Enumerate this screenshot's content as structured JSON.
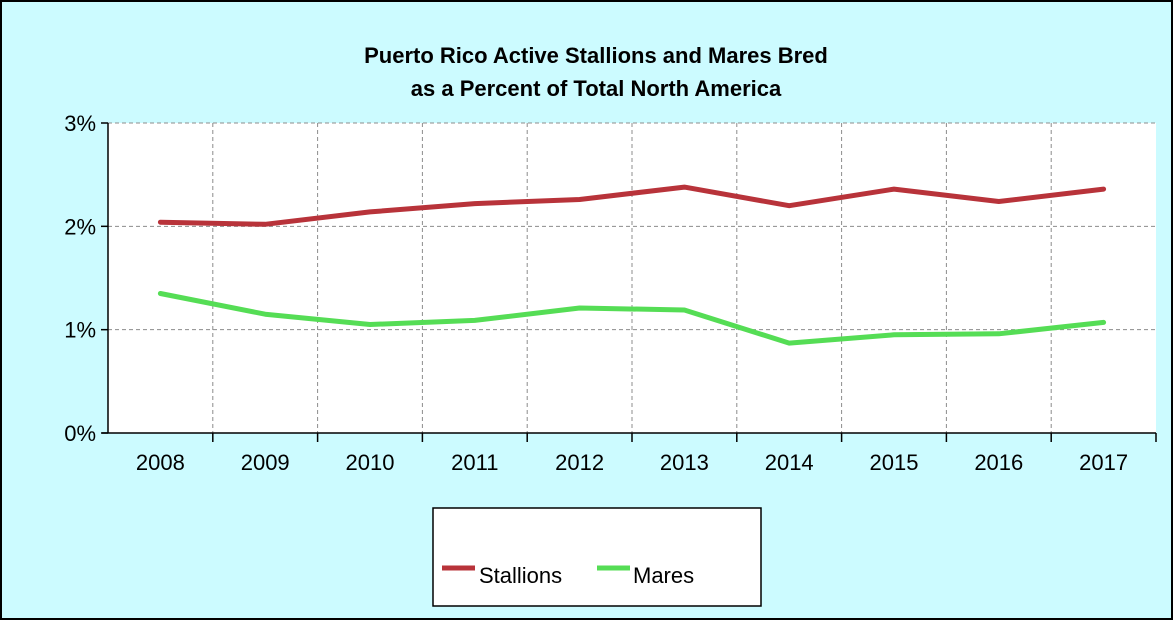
{
  "chart_data": {
    "type": "line",
    "title_lines": [
      "Puerto Rico Active Stallions and Mares Bred",
      "as a Percent of Total North America"
    ],
    "x": [
      "2008",
      "2009",
      "2010",
      "2011",
      "2012",
      "2013",
      "2014",
      "2015",
      "2016",
      "2017"
    ],
    "y_ticks": [
      "3%",
      "2%",
      "1%",
      "0%"
    ],
    "ylim": [
      0,
      3
    ],
    "y_unit": "%",
    "grid": true,
    "legend_position": "bottom",
    "series": [
      {
        "name": "Stallions",
        "color": "#b8333a",
        "values": [
          2.04,
          2.02,
          2.14,
          2.22,
          2.26,
          2.38,
          2.2,
          2.36,
          2.24,
          2.36
        ]
      },
      {
        "name": "Mares",
        "color": "#55dd55",
        "values": [
          1.35,
          1.15,
          1.05,
          1.09,
          1.21,
          1.19,
          0.87,
          0.95,
          0.96,
          1.07
        ]
      }
    ]
  }
}
